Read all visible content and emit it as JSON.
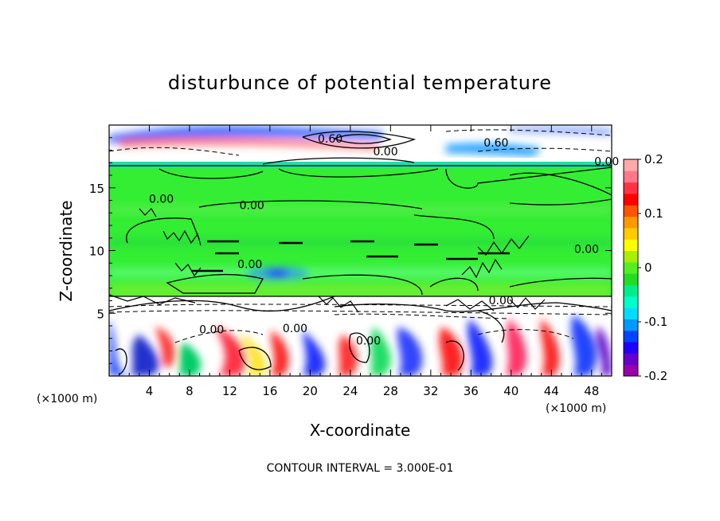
{
  "chart_data": {
    "type": "heatmap",
    "title": "disturbunce of potential temperature",
    "xlabel": "X-coordinate",
    "ylabel": "Z-coordinate",
    "x_unit_left": "(×1000 m)",
    "x_unit_right": "(×1000 m)",
    "xlim": [
      0,
      50
    ],
    "ylim": [
      0,
      20
    ],
    "x_ticks": [
      4,
      8,
      12,
      16,
      20,
      24,
      28,
      32,
      36,
      40,
      44,
      48
    ],
    "y_ticks": [
      5,
      10,
      15
    ],
    "colorbar": {
      "range": [
        -0.2,
        0.2
      ],
      "ticks": [
        {
          "value": 0.2,
          "label": "0.2"
        },
        {
          "value": 0.1,
          "label": "0.1"
        },
        {
          "value": 0.0,
          "label": "0"
        },
        {
          "value": -0.1,
          "label": "-0.1"
        },
        {
          "value": -0.2,
          "label": "-0.2"
        }
      ],
      "colors": [
        "#9900aa",
        "#6600cc",
        "#2200ff",
        "#0044ff",
        "#0099ff",
        "#00ddff",
        "#00ffcc",
        "#00ee88",
        "#22dd22",
        "#55ee22",
        "#aaee00",
        "#ffff00",
        "#ffcc00",
        "#ff9900",
        "#ff5500",
        "#ff0000",
        "#ff3344",
        "#ff7788",
        "#ffaaaa"
      ]
    },
    "contour_interval": "CONTOUR INTERVAL = 3.000E-01",
    "contour_labels": [
      {
        "text": "0.00",
        "x": 5.2,
        "y": 13.8
      },
      {
        "text": "0.00",
        "x": 14.2,
        "y": 13.3
      },
      {
        "text": "0.00",
        "x": 14.0,
        "y": 8.6
      },
      {
        "text": "0.00",
        "x": 27.5,
        "y": 17.6
      },
      {
        "text": "0.60",
        "x": 22.0,
        "y": 18.6
      },
      {
        "text": "0.60",
        "x": 38.5,
        "y": 18.3
      },
      {
        "text": "0.00",
        "x": 49.5,
        "y": 16.8
      },
      {
        "text": "0.00",
        "x": 47.5,
        "y": 9.8
      },
      {
        "text": "0.00",
        "x": 39.0,
        "y": 5.7
      },
      {
        "text": "0.00",
        "x": 10.2,
        "y": 3.4
      },
      {
        "text": "0.00",
        "x": 18.5,
        "y": 3.5
      },
      {
        "text": "0.00",
        "x": 25.8,
        "y": 2.5
      }
    ]
  }
}
